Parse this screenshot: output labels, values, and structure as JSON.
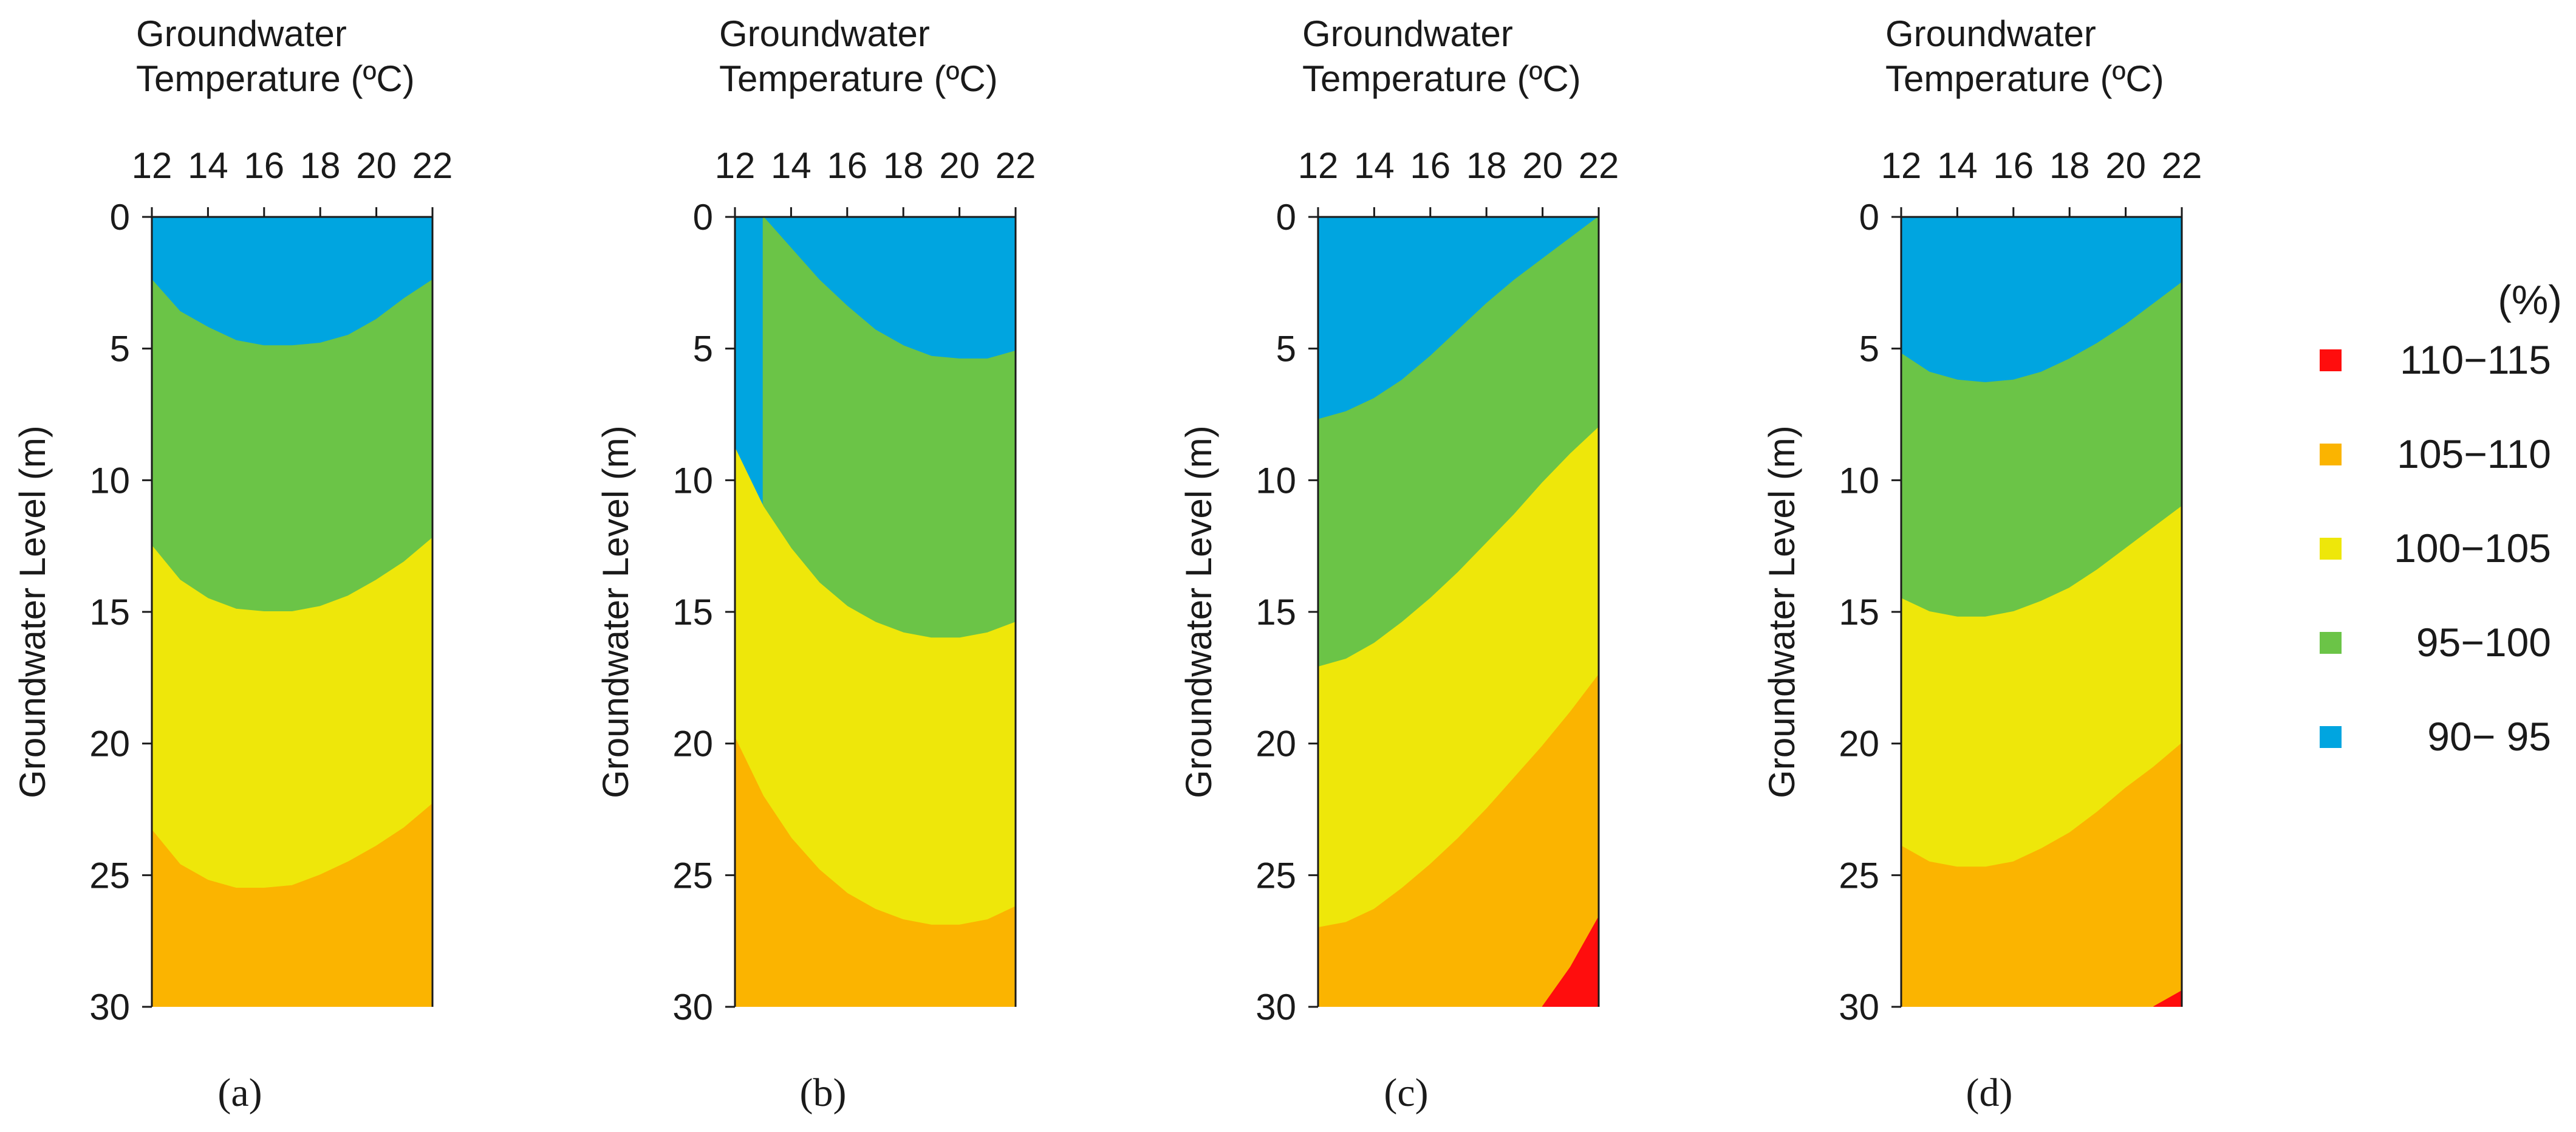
{
  "chart_data": [
    {
      "type": "contour",
      "panel_label": "(a)",
      "x_title_lines": [
        "Groundwater",
        "Temperature (ºC)"
      ],
      "xlabel": "Groundwater Temperature (ºC)",
      "ylabel": "Groundwater Level (m)",
      "xlim": [
        12,
        22
      ],
      "ylim": [
        0,
        30
      ],
      "x_ticks": [
        12,
        14,
        16,
        18,
        20,
        22
      ],
      "y_ticks": [
        0,
        5,
        10,
        15,
        20,
        25,
        30
      ],
      "x_tick_labels": [
        "12",
        "14",
        "16",
        "18",
        "20",
        "22"
      ],
      "y_tick_labels": [
        "0",
        "5",
        "10",
        "15",
        "20",
        "25",
        "30"
      ],
      "temps": [
        12,
        13,
        14,
        15,
        16,
        17,
        18,
        19,
        20,
        21,
        22
      ],
      "boundaries": [
        {
          "between": "90-95 | 95-100",
          "depth_m": [
            2.4,
            3.6,
            4.2,
            4.7,
            4.9,
            4.9,
            4.8,
            4.5,
            3.9,
            3.1,
            2.4
          ]
        },
        {
          "between": "95-100 | 100-105",
          "depth_m": [
            12.5,
            13.8,
            14.5,
            14.9,
            15.0,
            15.0,
            14.8,
            14.4,
            13.8,
            13.1,
            12.2
          ]
        },
        {
          "between": "100-105 | 105-110",
          "depth_m": [
            23.3,
            24.6,
            25.2,
            25.5,
            25.5,
            25.4,
            25.0,
            24.5,
            23.9,
            23.2,
            22.3
          ]
        }
      ]
    },
    {
      "type": "contour",
      "panel_label": "(b)",
      "x_title_lines": [
        "Groundwater",
        "Temperature (ºC)"
      ],
      "xlabel": "Groundwater Temperature (ºC)",
      "ylabel": "Groundwater Level (m)",
      "xlim": [
        12,
        22
      ],
      "ylim": [
        0,
        30
      ],
      "x_ticks": [
        12,
        14,
        16,
        18,
        20,
        22
      ],
      "y_ticks": [
        0,
        5,
        10,
        15,
        20,
        25,
        30
      ],
      "x_tick_labels": [
        "12",
        "14",
        "16",
        "18",
        "20",
        "22"
      ],
      "y_tick_labels": [
        "0",
        "5",
        "10",
        "15",
        "20",
        "25",
        "30"
      ],
      "temps": [
        12,
        13,
        14,
        15,
        16,
        17,
        18,
        19,
        20,
        21,
        22
      ],
      "boundaries": [
        {
          "between": "90-95 | 95-100",
          "depth_m": [
            null,
            0.0,
            1.2,
            2.4,
            3.4,
            4.3,
            4.9,
            5.3,
            5.4,
            5.4,
            5.1
          ]
        },
        {
          "between": "95-100 | 100-105",
          "depth_m": [
            8.8,
            11.0,
            12.6,
            13.9,
            14.8,
            15.4,
            15.8,
            16.0,
            16.0,
            15.8,
            15.4
          ]
        },
        {
          "between": "100-105 | 105-110",
          "depth_m": [
            19.8,
            22.0,
            23.6,
            24.8,
            25.7,
            26.3,
            26.7,
            26.9,
            26.9,
            26.7,
            26.2
          ]
        }
      ]
    },
    {
      "type": "contour",
      "panel_label": "(c)",
      "x_title_lines": [
        "Groundwater",
        "Temperature (ºC)"
      ],
      "xlabel": "Groundwater Temperature (ºC)",
      "ylabel": "Groundwater Level (m)",
      "xlim": [
        12,
        22
      ],
      "ylim": [
        0,
        30
      ],
      "x_ticks": [
        12,
        14,
        16,
        18,
        20,
        22
      ],
      "y_ticks": [
        0,
        5,
        10,
        15,
        20,
        25,
        30
      ],
      "x_tick_labels": [
        "12",
        "14",
        "16",
        "18",
        "20",
        "22"
      ],
      "y_tick_labels": [
        "0",
        "5",
        "10",
        "15",
        "20",
        "25",
        "30"
      ],
      "temps": [
        12,
        13,
        14,
        15,
        16,
        17,
        18,
        19,
        20,
        21,
        22
      ],
      "boundaries": [
        {
          "between": "90-95 | 95-100",
          "depth_m": [
            7.7,
            7.4,
            6.9,
            6.2,
            5.3,
            4.3,
            3.3,
            2.4,
            1.6,
            0.8,
            0.0
          ]
        },
        {
          "between": "95-100 | 100-105",
          "depth_m": [
            17.1,
            16.8,
            16.2,
            15.4,
            14.5,
            13.5,
            12.4,
            11.3,
            10.1,
            9.0,
            8.0
          ]
        },
        {
          "between": "100-105 | 105-110",
          "depth_m": [
            27.0,
            26.8,
            26.3,
            25.5,
            24.6,
            23.6,
            22.5,
            21.3,
            20.1,
            18.8,
            17.4
          ]
        },
        {
          "between": "105-110 | 110-115",
          "depth_m": [
            null,
            null,
            null,
            null,
            null,
            null,
            null,
            null,
            30.0,
            28.5,
            26.6
          ]
        }
      ]
    },
    {
      "type": "contour",
      "panel_label": "(d)",
      "x_title_lines": [
        "Groundwater",
        "Temperature (ºC)"
      ],
      "xlabel": "Groundwater Temperature (ºC)",
      "ylabel": "Groundwater Level (m)",
      "xlim": [
        12,
        22
      ],
      "ylim": [
        0,
        30
      ],
      "x_ticks": [
        12,
        14,
        16,
        18,
        20,
        22
      ],
      "y_ticks": [
        0,
        5,
        10,
        15,
        20,
        25,
        30
      ],
      "x_tick_labels": [
        "12",
        "14",
        "16",
        "18",
        "20",
        "22"
      ],
      "y_tick_labels": [
        "0",
        "5",
        "10",
        "15",
        "20",
        "25",
        "30"
      ],
      "temps": [
        12,
        13,
        14,
        15,
        16,
        17,
        18,
        19,
        20,
        21,
        22
      ],
      "boundaries": [
        {
          "between": "90-95 | 95-100",
          "depth_m": [
            5.2,
            5.9,
            6.2,
            6.3,
            6.2,
            5.9,
            5.4,
            4.8,
            4.1,
            3.3,
            2.5
          ]
        },
        {
          "between": "95-100 | 100-105",
          "depth_m": [
            14.5,
            15.0,
            15.2,
            15.2,
            15.0,
            14.6,
            14.1,
            13.4,
            12.6,
            11.8,
            11.0
          ]
        },
        {
          "between": "100-105 | 105-110",
          "depth_m": [
            23.9,
            24.5,
            24.7,
            24.7,
            24.5,
            24.0,
            23.4,
            22.6,
            21.7,
            20.9,
            20.0
          ]
        },
        {
          "between": "105-110 | 110-115",
          "depth_m": [
            null,
            null,
            null,
            null,
            null,
            null,
            null,
            null,
            null,
            30.0,
            29.4
          ]
        }
      ]
    }
  ],
  "legend": {
    "unit": "(%)",
    "placement": "right",
    "items": [
      {
        "label": "110−115",
        "color": "#ff0d0d"
      },
      {
        "label": "105−110",
        "color": "#fbb400"
      },
      {
        "label": "100−105",
        "color": "#eee70a"
      },
      {
        "label": "95−100",
        "color": "#6bc447"
      },
      {
        "label": "90−  95",
        "color": "#00a5e0"
      }
    ]
  },
  "colors": {
    "band_90_95": "#00a5e0",
    "band_95_100": "#6bc447",
    "band_100_105": "#eee70a",
    "band_105_110": "#fbb400",
    "band_110_115": "#ff0d0d",
    "axis": "#1a1a1a"
  }
}
